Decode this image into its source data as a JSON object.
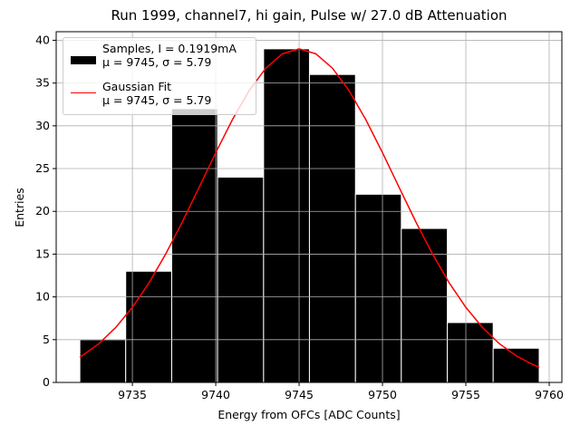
{
  "chart_data": {
    "type": "histogram",
    "title": "Run 1999, channel7, hi gain, Pulse w/ 27.0 dB Attenuation",
    "xlabel": "Energy from OFCs [ADC Counts]",
    "ylabel": "Entries",
    "bins": [
      9731.85,
      9734.6,
      9737.36,
      9740.11,
      9742.87,
      9745.62,
      9748.38,
      9751.13,
      9753.89,
      9756.64,
      9759.4
    ],
    "series": [
      {
        "name": "Samples, I = 0.1919mA\nμ = 9745, σ = 5.79",
        "type": "histogram",
        "color": "#000000",
        "edgecolor": "#ffffff",
        "values": [
          5,
          13,
          32,
          24,
          39,
          36,
          22,
          18,
          7,
          4
        ]
      },
      {
        "name": "Gaussian Fit\nμ = 9745, σ = 5.79",
        "type": "line",
        "color": "#ff0000",
        "x": [
          9731.85,
          9732,
          9733,
          9734,
          9735,
          9736,
          9737,
          9738,
          9739,
          9740,
          9741,
          9742,
          9743,
          9744,
          9745,
          9746,
          9747,
          9748,
          9749,
          9750,
          9751,
          9752,
          9753,
          9754,
          9755,
          9756,
          9757,
          9758,
          9759,
          9759.4
        ],
        "values": [
          2.96,
          3.14,
          4.55,
          6.42,
          8.78,
          11.65,
          15.02,
          18.78,
          22.8,
          26.86,
          30.72,
          34.1,
          36.74,
          38.42,
          39,
          38.42,
          36.74,
          34.1,
          30.72,
          26.86,
          22.8,
          18.78,
          15.02,
          11.65,
          8.78,
          6.42,
          4.55,
          3.14,
          2.1,
          1.77
        ]
      }
    ],
    "xlim": [
      9730.43,
      9760.76
    ],
    "ylim": [
      0,
      41.0
    ],
    "xticks": [
      9735,
      9740,
      9745,
      9750,
      9755,
      9760
    ],
    "yticks": [
      0,
      5,
      10,
      15,
      20,
      25,
      30,
      35,
      40
    ],
    "grid": true,
    "legend": "upper left"
  }
}
